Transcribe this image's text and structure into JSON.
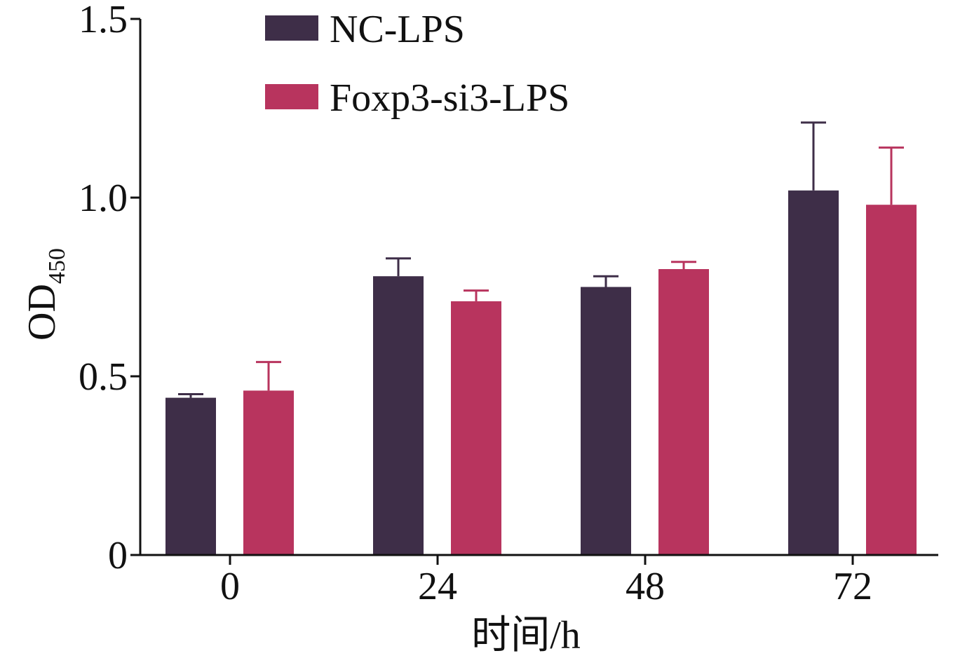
{
  "chart_data": {
    "type": "bar",
    "title": "",
    "xlabel": "时间/h",
    "ylabel": {
      "main": "OD",
      "sub": "450"
    },
    "categories": [
      "0",
      "24",
      "48",
      "72"
    ],
    "series": [
      {
        "name": "NC-LPS",
        "color": "#3e2e48",
        "values": [
          0.44,
          0.78,
          0.75,
          1.02
        ],
        "errors": [
          0.01,
          0.05,
          0.03,
          0.19
        ]
      },
      {
        "name": "Foxp3-si3-LPS",
        "color": "#b8345e",
        "values": [
          0.46,
          0.71,
          0.8,
          0.98
        ],
        "errors": [
          0.08,
          0.03,
          0.02,
          0.16
        ]
      }
    ],
    "ylim": [
      0,
      1.5
    ],
    "yticks": [
      {
        "value": 0,
        "label": "0"
      },
      {
        "value": 0.5,
        "label": "0.5"
      },
      {
        "value": 1.0,
        "label": "1.0"
      },
      {
        "value": 1.5,
        "label": "1.5"
      }
    ],
    "grid": false,
    "legend_position": "top-left"
  }
}
